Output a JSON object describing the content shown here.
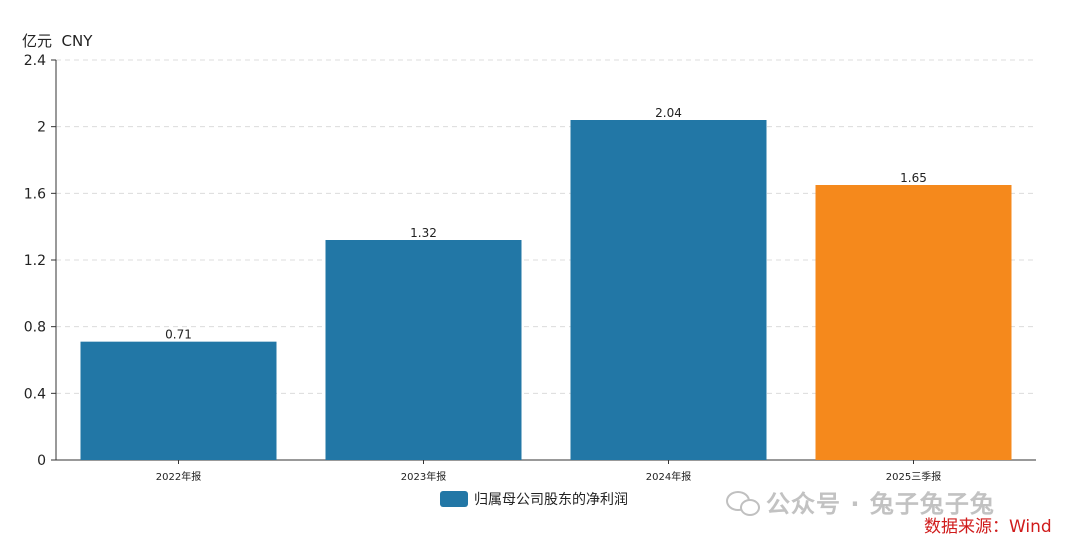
{
  "chart_data": {
    "type": "bar",
    "unit_label": "亿元  CNY",
    "categories": [
      "2022年报",
      "2023年报",
      "2024年报",
      "2025三季报"
    ],
    "values": [
      0.71,
      1.32,
      2.04,
      1.65
    ],
    "value_labels": [
      "0.71",
      "1.32",
      "2.04",
      "1.65"
    ],
    "ylim": [
      0,
      2.4
    ],
    "yticks": [
      "0",
      "0.4",
      "0.8",
      "1.2",
      "1.6",
      "2",
      "2.4"
    ],
    "grid": true,
    "series": [
      {
        "name": "归属母公司股东的净利润",
        "values": [
          0.71,
          1.32,
          2.04,
          1.65
        ]
      }
    ],
    "colors": {
      "default": "#2277a6",
      "highlight": "#f5891c",
      "highlight_index": 3
    },
    "legend_position": "bottom-center"
  },
  "watermark": "公众号 · 兔子兔子兔",
  "source": "数据来源：Wind"
}
